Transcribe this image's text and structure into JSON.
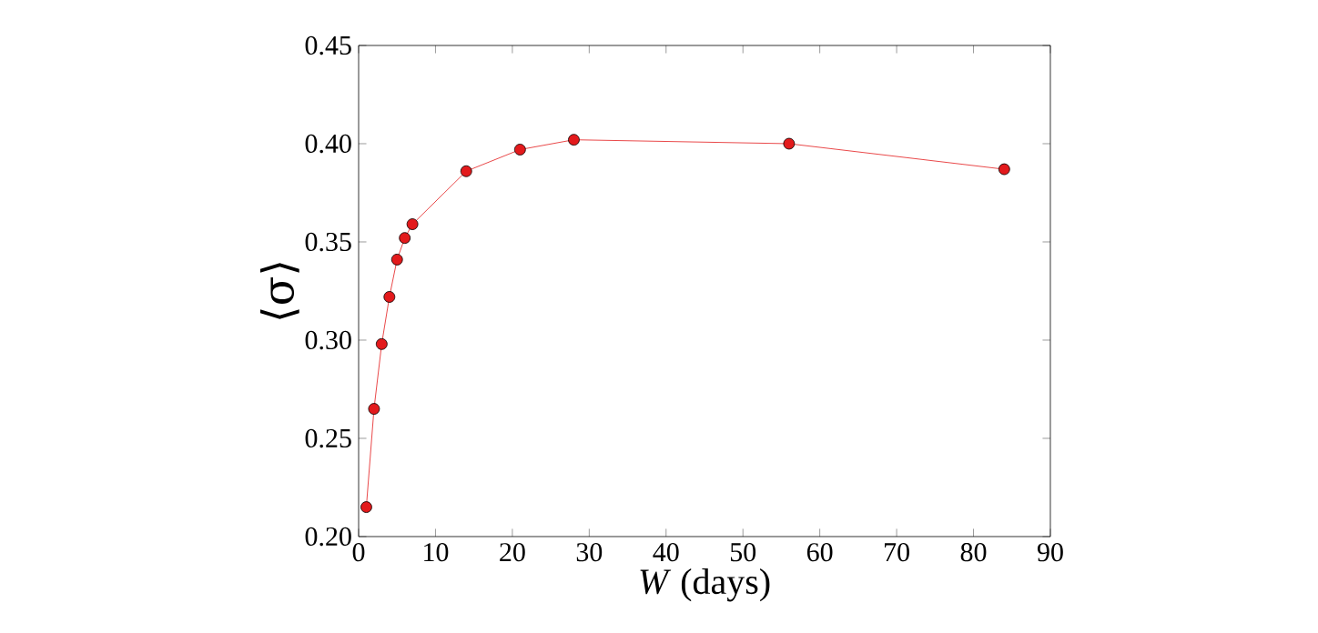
{
  "chart_data": {
    "type": "line",
    "xlabel": "*W* (days)",
    "ylabel": "⟨σ⟩",
    "x": [
      1,
      2,
      3,
      4,
      5,
      6,
      7,
      14,
      21,
      28,
      56,
      84
    ],
    "series": [
      {
        "color": "#e31a1c",
        "values": [
          0.215,
          0.265,
          0.298,
          0.322,
          0.341,
          0.352,
          0.359,
          0.386,
          0.397,
          0.402,
          0.4,
          0.387
        ]
      }
    ],
    "xlim": [
      0,
      90
    ],
    "xticks": [
      0,
      10,
      20,
      30,
      40,
      50,
      60,
      70,
      80,
      90
    ],
    "ylim": [
      0.2,
      0.45
    ],
    "yticks": [
      {
        "value": 0.2,
        "label": "0.20"
      },
      {
        "value": 0.25,
        "label": "0.25"
      },
      {
        "value": 0.3,
        "label": "0.30"
      },
      {
        "value": 0.35,
        "label": "0.35"
      },
      {
        "value": 0.4,
        "label": "0.40"
      },
      {
        "value": 0.45,
        "label": "0.45"
      }
    ],
    "marker": "circle",
    "line_style": "solid"
  }
}
